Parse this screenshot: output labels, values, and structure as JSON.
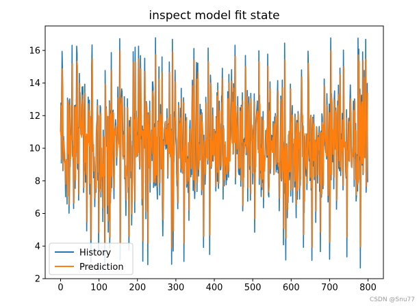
{
  "chart_data": {
    "type": "line",
    "title": "inspect model fit state",
    "xlabel": "",
    "ylabel": "",
    "xlim": [
      -40,
      840
    ],
    "ylim": [
      2,
      17.5
    ],
    "x_ticks": [
      0,
      100,
      200,
      300,
      400,
      500,
      600,
      700,
      800
    ],
    "y_ticks": [
      2,
      4,
      6,
      8,
      10,
      12,
      14,
      16
    ],
    "legend_position": "lower-left",
    "series": [
      {
        "name": "History",
        "color": "#1f77b4",
        "n_points": 800,
        "mean": 10.3,
        "amplitude": 3.4,
        "min": 2.6,
        "max": 16.8,
        "seed": 7
      },
      {
        "name": "Prediction",
        "color": "#ff7f0e",
        "lag_points": 1,
        "smoothing": 0.15,
        "min": 3.1,
        "max": 16.3
      }
    ]
  },
  "watermark": "CSDN @Snu77"
}
